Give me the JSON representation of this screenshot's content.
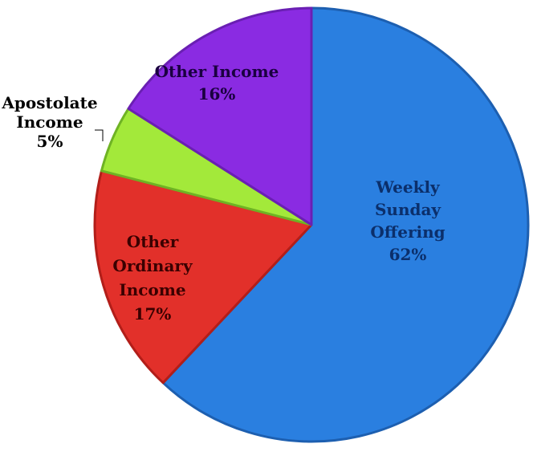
{
  "chart_data": {
    "type": "pie",
    "title": "",
    "slices": [
      {
        "key": "weekly",
        "label_lines": [
          "Weekly",
          "Sunday",
          "Offering"
        ],
        "percent_text": "62%",
        "value": 62,
        "fill": "#2A7FE0",
        "edge": "#1D5FB0",
        "text_color": "#0B2F6B"
      },
      {
        "key": "ordinary",
        "label_lines": [
          "Other",
          "Ordinary",
          "Income"
        ],
        "percent_text": "17%",
        "value": 17,
        "fill": "#E2302A",
        "edge": "#B21E19",
        "text_color": "#3A0000"
      },
      {
        "key": "apostolate",
        "label_lines": [
          "Apostolate",
          "Income"
        ],
        "percent_text": "5%",
        "value": 5,
        "fill": "#A3E93A",
        "edge": "#6FB324",
        "text_color": "#000000"
      },
      {
        "key": "other",
        "label_lines": [
          "Other Income"
        ],
        "percent_text": "16%",
        "value": 16,
        "fill": "#8A2BE2",
        "edge": "#6A1FB3",
        "text_color": "#1A0040"
      }
    ]
  }
}
